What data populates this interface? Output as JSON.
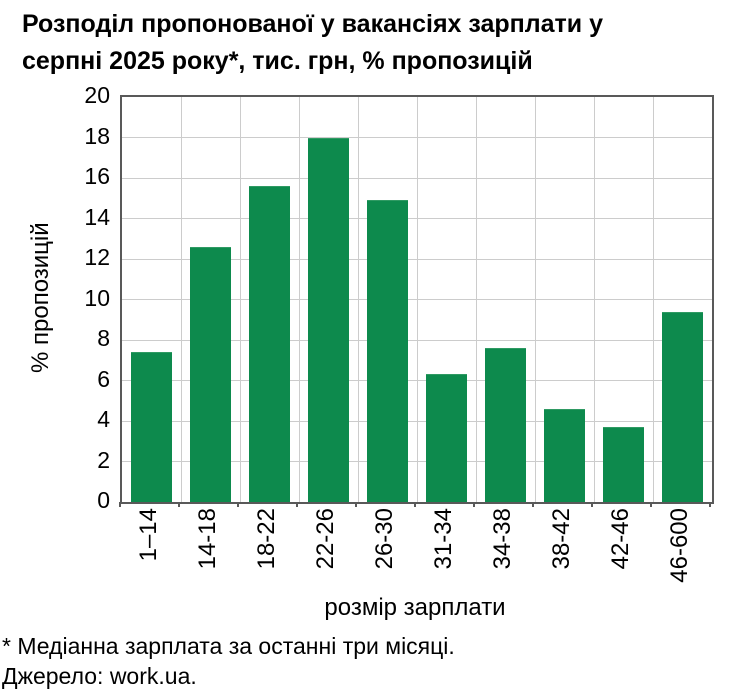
{
  "title": {
    "line1": "Розподіл пропонованої у вакансіях зарплати у",
    "line2": "серпні 2025 року*, тис. грн, % пропозицій"
  },
  "chart_data": {
    "type": "bar",
    "title": "Розподіл пропонованої у вакансіях зарплати у серпні 2025 року*, тис. грн, % пропозицій",
    "categories": [
      "1–14",
      "14-18",
      "18-22",
      "22-26",
      "26-30",
      "31-34",
      "34-38",
      "38-42",
      "42-46",
      "46-600"
    ],
    "values": [
      7.4,
      12.6,
      15.6,
      18.0,
      14.9,
      6.3,
      7.6,
      4.6,
      3.7,
      9.4
    ],
    "xlabel": "розмір зарплати",
    "ylabel": "% пропозицій",
    "ylim": [
      0,
      20
    ],
    "ytick_step": 2,
    "grid": true,
    "legend": "none",
    "bar_color": "#0d8a4d",
    "grid_color": "#cccccc",
    "axis_color": "#595959"
  },
  "footnotes": {
    "note": "* Медіанна зарплата за останні три місяці.",
    "source": "Джерело: work.ua."
  }
}
